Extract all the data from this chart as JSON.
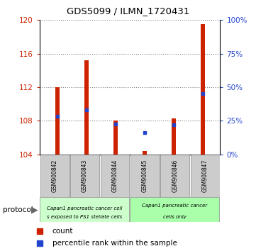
{
  "title": "GDS5099 / ILMN_1720431",
  "samples": [
    "GSM900842",
    "GSM900843",
    "GSM900844",
    "GSM900845",
    "GSM900846",
    "GSM900847"
  ],
  "bar_bottom": 104,
  "bar_tops": [
    112.0,
    115.2,
    108.0,
    104.4,
    108.3,
    119.5
  ],
  "percentile_values": [
    108.5,
    109.3,
    107.6,
    106.6,
    107.5,
    111.2
  ],
  "ylim_left": [
    104,
    120
  ],
  "ylim_right": [
    0,
    100
  ],
  "yticks_left": [
    104,
    108,
    112,
    116,
    120
  ],
  "yticks_right": [
    0,
    25,
    50,
    75,
    100
  ],
  "bar_color": "#cc2200",
  "percentile_color": "#2244cc",
  "bar_width": 0.15,
  "grid_linestyle": ":",
  "grid_color": "#000000",
  "group1_color": "#ccffcc",
  "group2_color": "#aaffaa",
  "group1_label1": "Capan1 pancreatic cancer cell",
  "group1_label2": "s exposed to PS1 stellate cells",
  "group2_label1": "Capan1 pancreatic cancer",
  "group2_label2": "cells only",
  "legend_label1": "count",
  "legend_label2": "percentile rank within the sample"
}
